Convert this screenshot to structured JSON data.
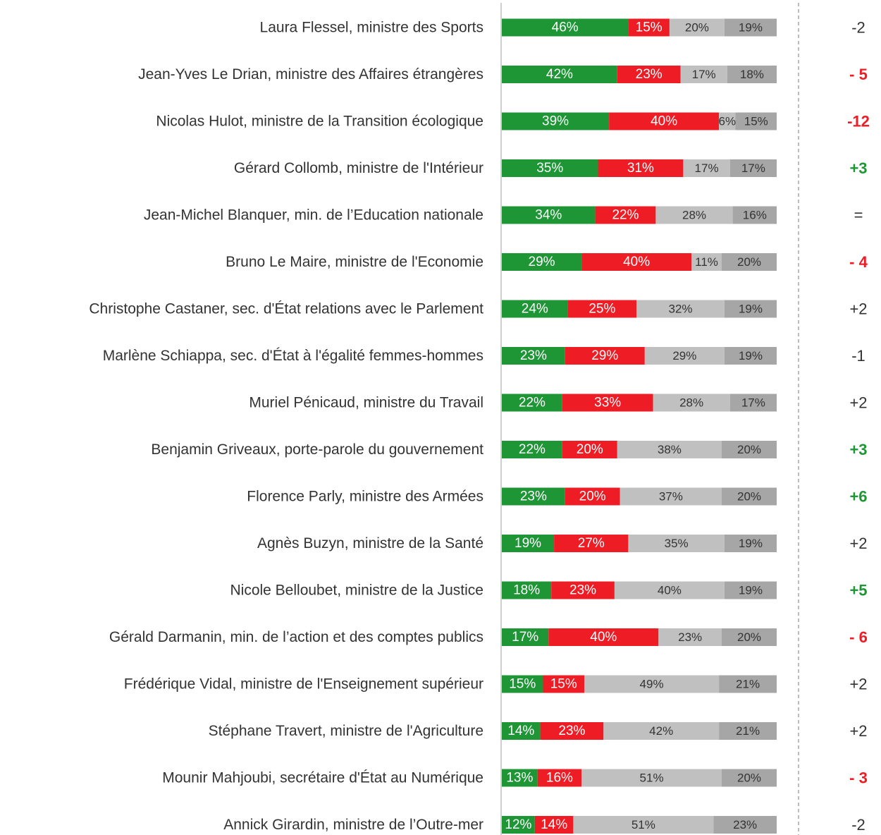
{
  "chart_data": {
    "type": "stacked_bar_h",
    "categories": [
      "Laura Flessel, ministre des Sports",
      "Jean-Yves Le Drian, ministre des Affaires étrangères",
      "Nicolas Hulot, ministre de la Transition écologique",
      "Gérard Collomb, ministre de l'Intérieur",
      "Jean-Michel Blanquer, min. de l’Education nationale",
      "Bruno Le Maire, ministre de l'Economie",
      "Christophe Castaner, sec. d'État relations avec le Parlement",
      "Marlène Schiappa, sec. d'État à l'égalité femmes-hommes",
      "Muriel Pénicaud, ministre du Travail",
      "Benjamin Griveaux, porte-parole du gouvernement",
      "Florence Parly, ministre des Armées",
      "Agnès Buzyn, ministre de la Santé",
      "Nicole Belloubet, ministre de la Justice",
      "Gérald Darmanin, min. de l’action et des comptes publics",
      "Frédérique Vidal, ministre de l'Enseignement supérieur",
      "Stéphane Travert, ministre de l'Agriculture",
      "Mounir Mahjoubi, secrétaire d'État au Numérique",
      "Annick Girardin, ministre de l’Outre-mer"
    ],
    "series": [
      {
        "color": "#1e9636",
        "label_color": "#ffffff",
        "values": [
          46,
          42,
          39,
          35,
          34,
          29,
          24,
          23,
          22,
          22,
          23,
          19,
          18,
          17,
          15,
          14,
          13,
          12
        ],
        "value_labels": [
          "46%",
          "42%",
          "39%",
          "35%",
          "34%",
          "29%",
          "24%",
          "23%",
          "22%",
          "22%",
          "23%",
          "19%",
          "18%",
          "17%",
          "15%",
          "14%",
          "13%",
          "12%"
        ]
      },
      {
        "color": "#ee1c25",
        "label_color": "#ffffff",
        "values": [
          15,
          23,
          40,
          31,
          22,
          40,
          25,
          29,
          33,
          20,
          20,
          27,
          23,
          40,
          15,
          23,
          16,
          14
        ],
        "value_labels": [
          "15%",
          "23%",
          "40%",
          "31%",
          "22%",
          "40%",
          "25%",
          "29%",
          "33%",
          "20%",
          "20%",
          "27%",
          "23%",
          "40%",
          "15%",
          "23%",
          "16%",
          "14%"
        ]
      },
      {
        "color": "#c0c0c0",
        "label_color": "#333333",
        "values": [
          20,
          17,
          6,
          17,
          28,
          11,
          32,
          29,
          28,
          38,
          37,
          35,
          40,
          23,
          49,
          42,
          51,
          51
        ],
        "value_labels": [
          "20%",
          "17%",
          "6%",
          "17%",
          "28%",
          "11%",
          "32%",
          "29%",
          "28%",
          "38%",
          "37%",
          "35%",
          "40%",
          "23%",
          "49%",
          "42%",
          "51%",
          "51%"
        ]
      },
      {
        "color": "#a6a6a6",
        "label_color": "#333333",
        "values": [
          19,
          18,
          15,
          17,
          16,
          20,
          19,
          19,
          17,
          20,
          20,
          19,
          19,
          20,
          21,
          21,
          20,
          23
        ],
        "value_labels": [
          "19%",
          "18%",
          "15%",
          "17%",
          "16%",
          "20%",
          "19%",
          "19%",
          "17%",
          "20%",
          "20%",
          "19%",
          "19%",
          "20%",
          "21%",
          "21%",
          "20%",
          "23%"
        ]
      }
    ],
    "xlim": [
      0,
      100
    ],
    "changes": {
      "values": [
        -2,
        -5,
        -12,
        3,
        0,
        -4,
        2,
        -1,
        2,
        3,
        6,
        2,
        5,
        -6,
        2,
        2,
        -3,
        -2
      ],
      "value_labels": [
        "-2",
        "- 5",
        "-12",
        "+3",
        "=",
        "- 4",
        "+2",
        "-1",
        "+2",
        "+3",
        "+6",
        "+2",
        "+5",
        "- 6",
        "+2",
        "+2",
        "- 3",
        "-2"
      ],
      "colors": [
        "#333333",
        "#ee1c25",
        "#ee1c25",
        "#1e9636",
        "#333333",
        "#ee1c25",
        "#333333",
        "#333333",
        "#333333",
        "#1e9636",
        "#1e9636",
        "#333333",
        "#1e9636",
        "#ee1c25",
        "#333333",
        "#333333",
        "#ee1c25",
        "#333333"
      ],
      "bold": [
        false,
        true,
        true,
        true,
        false,
        true,
        false,
        false,
        false,
        true,
        true,
        false,
        true,
        true,
        false,
        false,
        true,
        false
      ]
    }
  }
}
